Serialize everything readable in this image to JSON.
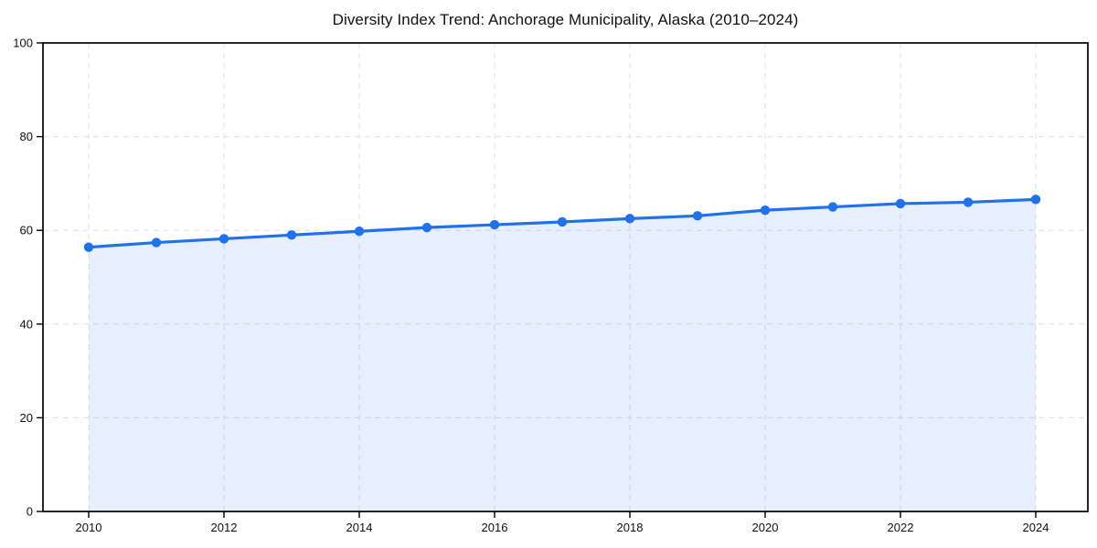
{
  "chart_data": {
    "type": "area",
    "title": "Diversity Index Trend: Anchorage Municipality, Alaska (2010–2024)",
    "x": [
      2010,
      2011,
      2012,
      2013,
      2014,
      2015,
      2016,
      2017,
      2018,
      2019,
      2020,
      2021,
      2022,
      2023,
      2024
    ],
    "values": [
      56.4,
      57.4,
      58.2,
      59.0,
      59.8,
      60.6,
      61.2,
      61.8,
      62.5,
      63.1,
      64.3,
      65.0,
      65.7,
      66.0,
      66.6
    ],
    "xlabel": "",
    "ylabel": "",
    "ylim": [
      0,
      100
    ],
    "yticks": [
      0,
      20,
      40,
      60,
      80,
      100
    ],
    "xticks": [
      2010,
      2012,
      2014,
      2016,
      2018,
      2020,
      2022,
      2024
    ],
    "grid": true,
    "grid_style": "dashed",
    "legend": "none",
    "line_color": "#2171e8",
    "marker_color": "#2171e8",
    "fill_color": "#2171e8",
    "fill_opacity": 0.11,
    "grid_color": "#e0e0e0",
    "axis_color": "#000000",
    "tick_text_color": "#111111"
  }
}
